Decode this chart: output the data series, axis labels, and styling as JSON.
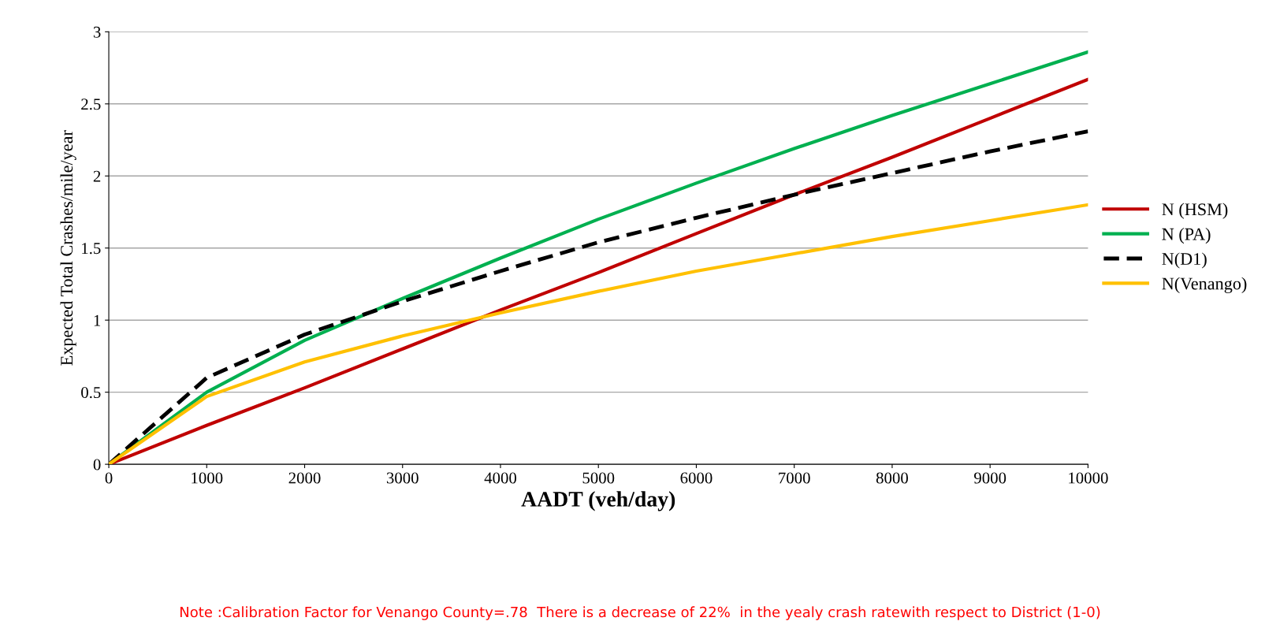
{
  "chart_data": {
    "type": "line",
    "xlabel": "AADT (veh/day)",
    "ylabel": "Expected Total Crashes/mile/year",
    "x": [
      0,
      1000,
      2000,
      3000,
      4000,
      5000,
      6000,
      7000,
      8000,
      9000,
      10000
    ],
    "series": [
      {
        "name": "N (HSM)",
        "color": "#c00000",
        "values": [
          0,
          0.27,
          0.53,
          0.8,
          1.07,
          1.33,
          1.6,
          1.87,
          2.13,
          2.4,
          2.67
        ]
      },
      {
        "name": "N (PA)",
        "color": "#00b050",
        "values": [
          0,
          0.5,
          0.86,
          1.15,
          1.43,
          1.7,
          1.95,
          2.19,
          2.42,
          2.64,
          2.86
        ]
      },
      {
        "name": "N(D1)",
        "color": "#000000",
        "line_style": "dashed",
        "values": [
          0,
          0.6,
          0.9,
          1.13,
          1.34,
          1.54,
          1.71,
          1.87,
          2.02,
          2.17,
          2.31
        ]
      },
      {
        "name": "N(Venango)",
        "color": "#ffc000",
        "values": [
          0,
          0.47,
          0.71,
          0.89,
          1.05,
          1.2,
          1.34,
          1.46,
          1.58,
          1.69,
          1.8
        ]
      }
    ],
    "xlim": [
      0,
      10000
    ],
    "xticks": [
      0,
      1000,
      2000,
      3000,
      4000,
      5000,
      6000,
      7000,
      8000,
      9000,
      10000
    ],
    "ylim": [
      0,
      3
    ],
    "yticks": [
      0,
      0.5,
      1,
      1.5,
      2,
      2.5,
      3
    ],
    "grid": "y",
    "legend": "right",
    "marker": "none",
    "annotations": [
      "Note :Calibration Factor for Venango County=.78  There is a decrease of 22%  in the yealy crash ratewith respect to District (1-0)"
    ]
  }
}
